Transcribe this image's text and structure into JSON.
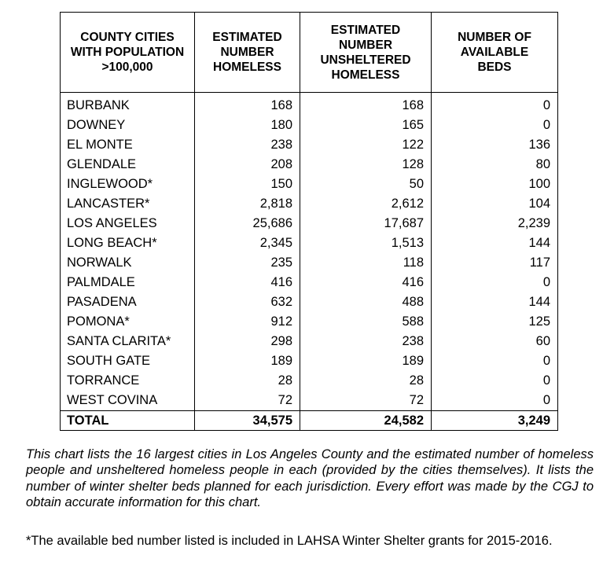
{
  "table": {
    "headers": [
      [
        "COUNTY CITIES",
        "WITH POPULATION",
        ">100,000"
      ],
      [
        "ESTIMATED",
        "NUMBER",
        "HOMELESS"
      ],
      [
        "ESTIMATED",
        "NUMBER",
        "UNSHELTERED",
        "HOMELESS"
      ],
      [
        "NUMBER OF",
        "AVAILABLE",
        "BEDS"
      ]
    ],
    "rows": [
      [
        "BURBANK",
        "168",
        "168",
        "0"
      ],
      [
        "DOWNEY",
        "180",
        "165",
        "0"
      ],
      [
        "EL MONTE",
        "238",
        "122",
        "136"
      ],
      [
        "GLENDALE",
        "208",
        "128",
        "80"
      ],
      [
        "INGLEWOOD*",
        "150",
        "50",
        "100"
      ],
      [
        "LANCASTER*",
        "2,818",
        "2,612",
        "104"
      ],
      [
        "LOS ANGELES",
        "25,686",
        "17,687",
        "2,239"
      ],
      [
        "LONG BEACH*",
        "2,345",
        "1,513",
        "144"
      ],
      [
        "NORWALK",
        "235",
        "118",
        "117"
      ],
      [
        "PALMDALE",
        "416",
        "416",
        "0"
      ],
      [
        "PASADENA",
        "632",
        "488",
        "144"
      ],
      [
        "POMONA*",
        "912",
        "588",
        "125"
      ],
      [
        "SANTA CLARITA*",
        "298",
        "238",
        "60"
      ],
      [
        "SOUTH GATE",
        "189",
        "189",
        "0"
      ],
      [
        "TORRANCE",
        "28",
        "28",
        "0"
      ],
      [
        "WEST COVINA",
        "72",
        "72",
        "0"
      ]
    ],
    "total": [
      "TOTAL",
      "34,575",
      "24,582",
      "3,249"
    ]
  },
  "caption": "This chart lists the 16 largest cities in Los Angeles County and the estimated number of homeless people and unsheltered homeless people in each (provided by the cities themselves). It lists the number of winter shelter beds planned for each jurisdiction. Every effort was made by the CGJ to obtain accurate information for this chart.",
  "footnote": "*The available bed number listed is included in LAHSA Winter Shelter grants for 2015-2016."
}
